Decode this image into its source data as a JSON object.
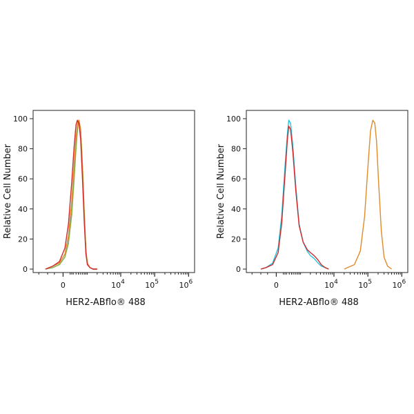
{
  "chart_data": [
    {
      "type": "line",
      "title": "",
      "xlabel": "HER2-ABflo® 488",
      "ylabel": "Relative Cell Number",
      "x_scale": "biexponential",
      "xlim": [
        -1500,
        1500000
      ],
      "ylim": [
        0,
        100
      ],
      "y_ticks": [
        "0",
        "20",
        "40",
        "60",
        "80",
        "100"
      ],
      "x_ticks": [
        {
          "base": "0",
          "exp": "",
          "value": 0
        },
        {
          "base": "10",
          "exp": "4",
          "value": 10000
        },
        {
          "base": "10",
          "exp": "5",
          "value": 100000
        },
        {
          "base": "10",
          "exp": "6",
          "value": 1000000
        }
      ],
      "grid": false,
      "legend": "none",
      "series": [
        {
          "color": "#5aa0d8",
          "x": [
            -600,
            -300,
            -100,
            50,
            150,
            250,
            330,
            400,
            470,
            520,
            600,
            700,
            800,
            900,
            1000,
            1200,
            1500,
            2000
          ],
          "y": [
            0,
            1,
            3,
            8,
            18,
            38,
            62,
            82,
            95,
            98,
            90,
            65,
            35,
            12,
            4,
            1,
            0,
            0
          ]
        },
        {
          "color": "#8ab34a",
          "x": [
            -600,
            -300,
            -100,
            50,
            150,
            250,
            330,
            400,
            470,
            520,
            600,
            700,
            800,
            900,
            1000,
            1200,
            1500,
            2000
          ],
          "y": [
            0,
            1,
            3,
            8,
            17,
            36,
            60,
            80,
            96,
            99,
            93,
            68,
            37,
            13,
            4,
            1,
            0,
            0
          ]
        },
        {
          "color": "#e08a2a",
          "x": [
            -600,
            -300,
            -100,
            50,
            150,
            250,
            330,
            400,
            470,
            520,
            600,
            700,
            800,
            900,
            1000,
            1200,
            1500,
            2000
          ],
          "y": [
            0,
            2,
            4,
            10,
            22,
            45,
            70,
            88,
            98,
            99,
            92,
            66,
            36,
            12,
            4,
            1,
            0,
            0
          ]
        },
        {
          "color": "#d02a2a",
          "x": [
            -600,
            -300,
            -100,
            50,
            150,
            250,
            330,
            400,
            450,
            520,
            600,
            700,
            800,
            900,
            1000,
            1200,
            1500,
            2000
          ],
          "y": [
            0,
            2,
            5,
            14,
            30,
            58,
            82,
            96,
            99,
            97,
            86,
            58,
            30,
            10,
            3,
            1,
            0,
            0
          ]
        }
      ]
    },
    {
      "type": "line",
      "title": "",
      "xlabel": "HER2-ABflo® 488",
      "ylabel": "Relative Cell Number",
      "x_scale": "biexponential",
      "xlim": [
        -1500,
        1500000
      ],
      "ylim": [
        0,
        100
      ],
      "y_ticks": [
        "0",
        "20",
        "40",
        "60",
        "80",
        "100"
      ],
      "x_ticks": [
        {
          "base": "0",
          "exp": "",
          "value": 0
        },
        {
          "base": "10",
          "exp": "4",
          "value": 10000
        },
        {
          "base": "10",
          "exp": "5",
          "value": 100000
        },
        {
          "base": "10",
          "exp": "6",
          "value": 1000000
        }
      ],
      "grid": false,
      "legend": "none",
      "series": [
        {
          "color": "#20c4e0",
          "x": [
            -500,
            -300,
            -100,
            50,
            150,
            250,
            330,
            380,
            450,
            550,
            700,
            900,
            1200,
            1600,
            2000,
            2600,
            3400,
            4200,
            5500,
            7000
          ],
          "y": [
            0,
            1,
            4,
            14,
            35,
            68,
            90,
            99,
            97,
            82,
            55,
            30,
            18,
            12,
            9,
            7,
            4,
            2,
            1,
            0
          ]
        },
        {
          "color": "#d02a2a",
          "x": [
            -500,
            -300,
            -100,
            50,
            150,
            250,
            330,
            380,
            450,
            550,
            700,
            900,
            1200,
            1600,
            2000,
            2600,
            3400,
            4200,
            5500,
            7000
          ],
          "y": [
            0,
            1,
            3,
            11,
            30,
            62,
            86,
            95,
            93,
            78,
            52,
            29,
            18,
            13,
            11,
            9,
            6,
            3,
            1,
            0
          ]
        },
        {
          "color": "#e08a2a",
          "x": [
            20000,
            40000,
            60000,
            80000,
            100000,
            120000,
            140000,
            160000,
            180000,
            210000,
            250000,
            300000,
            380000,
            500000
          ],
          "y": [
            0,
            3,
            12,
            35,
            68,
            92,
            99,
            97,
            85,
            55,
            25,
            8,
            2,
            0
          ]
        }
      ]
    }
  ]
}
